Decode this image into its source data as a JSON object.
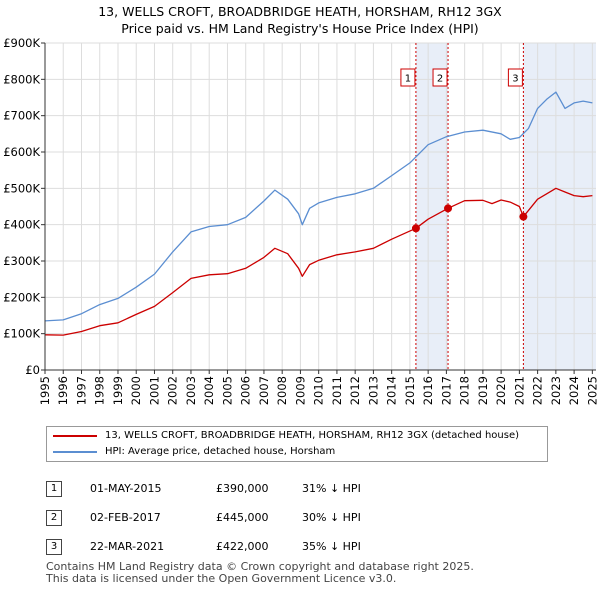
{
  "header": {
    "title_line1": "13, WELLS CROFT, BROADBRIDGE HEATH, HORSHAM, RH12 3GX",
    "title_line2": "Price paid vs. HM Land Registry's House Price Index (HPI)"
  },
  "chart_data": {
    "type": "line",
    "xlim": [
      1995,
      2025.2
    ],
    "ylim": [
      0,
      900000
    ],
    "y_ticks": [
      0,
      100000,
      200000,
      300000,
      400000,
      500000,
      600000,
      700000,
      800000,
      900000
    ],
    "y_tick_labels": [
      "£0",
      "£100K",
      "£200K",
      "£300K",
      "£400K",
      "£500K",
      "£600K",
      "£700K",
      "£800K",
      "£900K"
    ],
    "x_ticks": [
      "1995",
      "1996",
      "1997",
      "1998",
      "1999",
      "2000",
      "2001",
      "2002",
      "2003",
      "2004",
      "2005",
      "2006",
      "2007",
      "2008",
      "2009",
      "2010",
      "2011",
      "2012",
      "2013",
      "2014",
      "2015",
      "2016",
      "2017",
      "2018",
      "2019",
      "2020",
      "2021",
      "2022",
      "2023",
      "2024",
      "2025"
    ],
    "series": [
      {
        "name": "13, WELLS CROFT, BROADBRIDGE HEATH, HORSHAM, RH12 3GX (detached house)",
        "color": "#cc0000",
        "points": [
          [
            1995,
            97000
          ],
          [
            1996,
            96000
          ],
          [
            1997,
            106000
          ],
          [
            1998,
            122000
          ],
          [
            1999,
            130000
          ],
          [
            2000,
            153000
          ],
          [
            2001,
            175000
          ],
          [
            2002,
            213000
          ],
          [
            2003,
            252000
          ],
          [
            2004,
            262000
          ],
          [
            2005,
            265000
          ],
          [
            2006,
            280000
          ],
          [
            2007,
            310000
          ],
          [
            2007.6,
            335000
          ],
          [
            2008.3,
            320000
          ],
          [
            2008.9,
            280000
          ],
          [
            2009.1,
            258000
          ],
          [
            2009.5,
            290000
          ],
          [
            2010,
            302000
          ],
          [
            2011,
            317000
          ],
          [
            2012,
            325000
          ],
          [
            2013,
            335000
          ],
          [
            2014,
            360000
          ],
          [
            2015.33,
            390000
          ],
          [
            2016,
            415000
          ],
          [
            2017.09,
            445000
          ],
          [
            2018,
            466000
          ],
          [
            2019,
            467000
          ],
          [
            2019.5,
            458000
          ],
          [
            2020,
            468000
          ],
          [
            2020.5,
            462000
          ],
          [
            2021,
            450000
          ],
          [
            2021.22,
            422000
          ],
          [
            2022,
            470000
          ],
          [
            2022.5,
            485000
          ],
          [
            2023,
            500000
          ],
          [
            2023.5,
            490000
          ],
          [
            2024,
            480000
          ],
          [
            2024.5,
            477000
          ],
          [
            2025,
            480000
          ]
        ]
      },
      {
        "name": "HPI: Average price, detached house, Horsham",
        "color": "#5b8ed1",
        "points": [
          [
            1995,
            135000
          ],
          [
            1996,
            138000
          ],
          [
            1997,
            155000
          ],
          [
            1998,
            180000
          ],
          [
            1999,
            197000
          ],
          [
            2000,
            228000
          ],
          [
            2001,
            264000
          ],
          [
            2002,
            325000
          ],
          [
            2003,
            380000
          ],
          [
            2004,
            395000
          ],
          [
            2005,
            400000
          ],
          [
            2006,
            420000
          ],
          [
            2007,
            465000
          ],
          [
            2007.6,
            495000
          ],
          [
            2008.3,
            470000
          ],
          [
            2008.9,
            430000
          ],
          [
            2009.1,
            400000
          ],
          [
            2009.5,
            445000
          ],
          [
            2010,
            460000
          ],
          [
            2011,
            475000
          ],
          [
            2012,
            485000
          ],
          [
            2013,
            500000
          ],
          [
            2014,
            535000
          ],
          [
            2015,
            570000
          ],
          [
            2016,
            620000
          ],
          [
            2017,
            642000
          ],
          [
            2018,
            655000
          ],
          [
            2019,
            660000
          ],
          [
            2020,
            650000
          ],
          [
            2020.5,
            635000
          ],
          [
            2021,
            640000
          ],
          [
            2021.5,
            665000
          ],
          [
            2022,
            720000
          ],
          [
            2022.5,
            745000
          ],
          [
            2023,
            765000
          ],
          [
            2023.5,
            720000
          ],
          [
            2024,
            735000
          ],
          [
            2024.5,
            740000
          ],
          [
            2025,
            735000
          ]
        ]
      }
    ],
    "sales": [
      {
        "label": "1",
        "x": 2015.33,
        "y": 390000
      },
      {
        "label": "2",
        "x": 2017.09,
        "y": 445000
      },
      {
        "label": "3",
        "x": 2021.22,
        "y": 422000
      }
    ],
    "shaded_ranges": [
      [
        2015.33,
        2017.09
      ],
      [
        2021.22,
        2025.2
      ]
    ]
  },
  "legend": {
    "series1": "13, WELLS CROFT, BROADBRIDGE HEATH, HORSHAM, RH12 3GX (detached house)",
    "series2": "HPI: Average price, detached house, Horsham"
  },
  "transactions": [
    {
      "num": "1",
      "date": "01-MAY-2015",
      "price": "£390,000",
      "hpi": "31% ↓ HPI"
    },
    {
      "num": "2",
      "date": "02-FEB-2017",
      "price": "£445,000",
      "hpi": "30% ↓ HPI"
    },
    {
      "num": "3",
      "date": "22-MAR-2021",
      "price": "£422,000",
      "hpi": "35% ↓ HPI"
    }
  ],
  "footer": {
    "line1": "Contains HM Land Registry data © Crown copyright and database right 2025.",
    "line2": "This data is licensed under the Open Government Licence v3.0."
  }
}
